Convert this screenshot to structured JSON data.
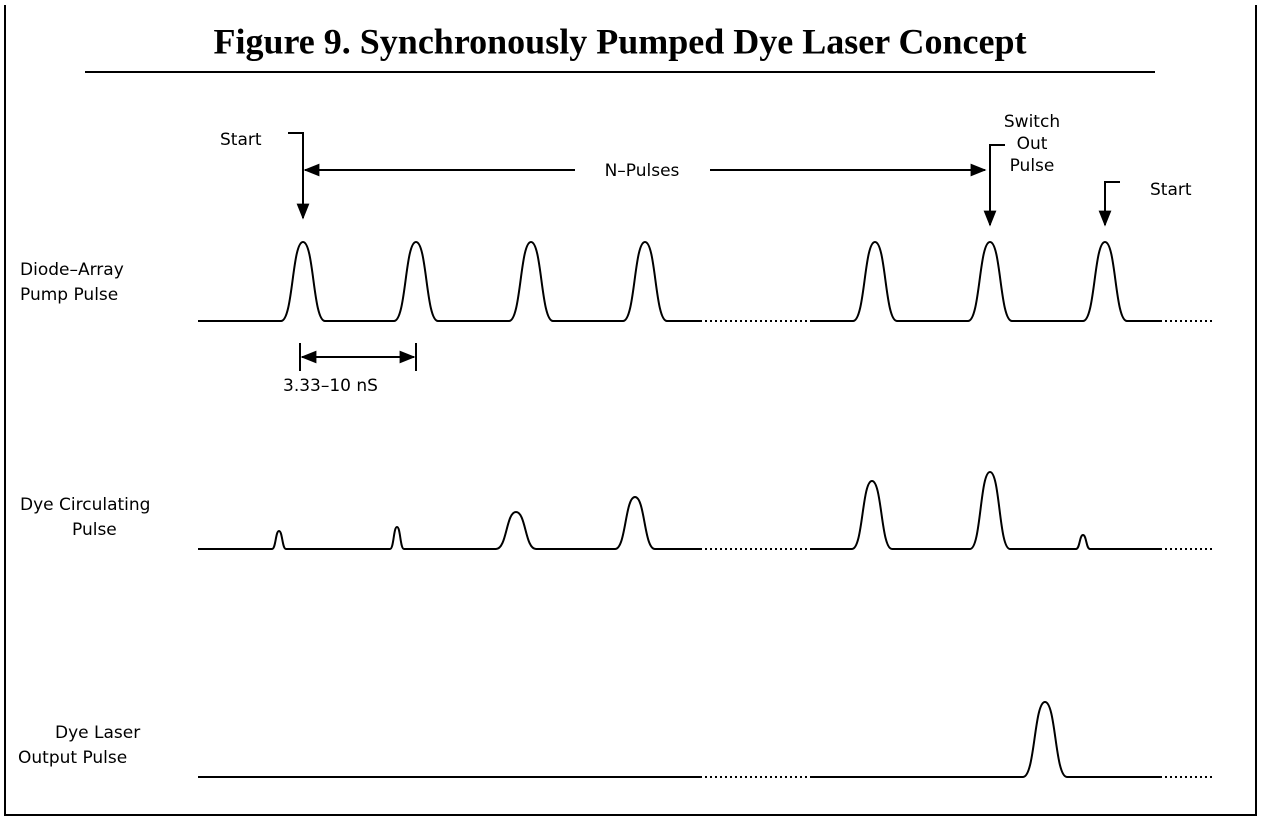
{
  "title": "Figure 9. Synchronously Pumped Dye Laser Concept",
  "annotations": {
    "start_left": "Start",
    "n_pulses": "N–Pulses",
    "switch_out": [
      "Switch",
      "Out",
      "Pulse"
    ],
    "start_right": "Start",
    "period": "3.33–10 nS"
  },
  "rows": [
    {
      "label": [
        "Diode–Array",
        "Pump Pulse"
      ]
    },
    {
      "label": [
        "Dye Circulating",
        "Pulse"
      ]
    },
    {
      "label": [
        "Dye Laser",
        "Output Pulse"
      ]
    }
  ]
}
